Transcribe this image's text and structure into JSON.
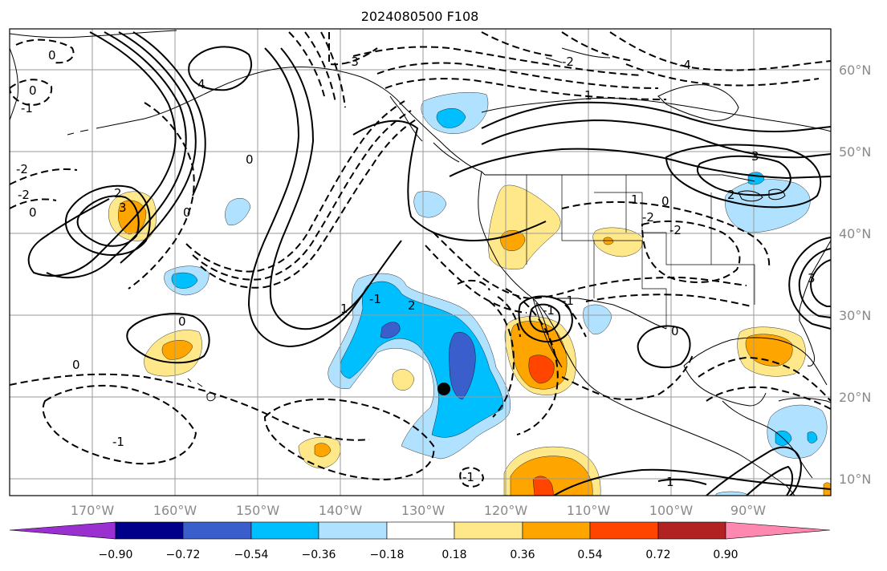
{
  "title": "2024080500 F108",
  "lon_labels": [
    "170°W",
    "160°W",
    "150°W",
    "140°W",
    "130°W",
    "120°W",
    "110°W",
    "100°W",
    "90°W"
  ],
  "lat_labels": [
    "60°N",
    "50°N",
    "40°N",
    "30°N",
    "20°N",
    "10°N"
  ],
  "colorbar": {
    "tick_labels": [
      "−0.90",
      "−0.72",
      "−0.54",
      "−0.36",
      "−0.18",
      "0.18",
      "0.36",
      "0.54",
      "0.72",
      "0.90"
    ],
    "colors": [
      "#9b30d0",
      "#00008b",
      "#3a5fcd",
      "#00bfff",
      "#b0e2ff",
      "#ffffff",
      "#ffe88a",
      "#ffa500",
      "#ff4500",
      "#b22222",
      "#ff88b0"
    ]
  },
  "contour_labels": [
    "0",
    "0",
    "0",
    "0",
    "0",
    "0",
    "0",
    "0",
    "0",
    "-1",
    "-1",
    "-1",
    "-1",
    "-1",
    "-1",
    "1",
    "1",
    "1",
    "1",
    "-2",
    "-2",
    "-2",
    "-2",
    "-2",
    "2",
    "2",
    "2",
    "-3",
    "3",
    "3",
    "-4",
    "4",
    "3"
  ]
}
